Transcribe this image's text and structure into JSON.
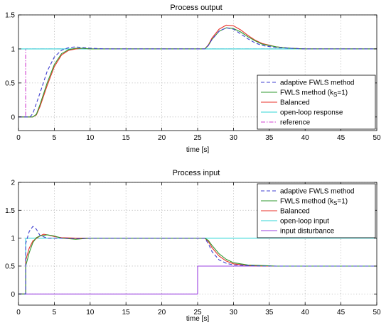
{
  "chart_data": [
    {
      "type": "line",
      "title": "Process output",
      "xlabel": "time [s]",
      "ylabel": "",
      "xlim": [
        0,
        50
      ],
      "ylim": [
        -0.2,
        1.5
      ],
      "xticks": [
        0,
        5,
        10,
        15,
        20,
        25,
        30,
        35,
        40,
        45,
        50
      ],
      "yticks": [
        0,
        0.5,
        1,
        1.5
      ],
      "grid": true,
      "legend_position": "bottom-right",
      "series": [
        {
          "name": "adaptive FWLS method",
          "color": "#3f3fd0",
          "style": "dashed",
          "x": [
            0,
            1,
            1.6,
            2,
            3,
            4,
            5,
            6,
            7,
            8,
            9,
            10,
            12,
            15,
            20,
            26,
            26.5,
            27,
            28,
            29,
            30,
            31,
            32,
            33,
            34,
            36,
            38,
            40,
            45,
            50
          ],
          "y": [
            0,
            0,
            0,
            0.05,
            0.35,
            0.67,
            0.88,
            0.98,
            1.02,
            1.03,
            1.02,
            1.01,
            1.0,
            1.0,
            1.0,
            1.0,
            1.05,
            1.14,
            1.26,
            1.31,
            1.29,
            1.22,
            1.15,
            1.09,
            1.05,
            1.02,
            1.01,
            1.0,
            1.0,
            1.0
          ]
        },
        {
          "name": "FWLS method (k",
          "name_sub": "S",
          "name_end": "=1)",
          "color": "#2f9a2f",
          "style": "solid",
          "x": [
            0,
            1,
            2,
            2.5,
            3,
            4,
            5,
            6,
            7,
            8,
            9,
            10,
            12,
            15,
            20,
            26,
            26.5,
            27,
            28,
            29,
            30,
            31,
            32,
            33,
            34,
            36,
            38,
            40,
            45,
            50
          ],
          "y": [
            0,
            0,
            0,
            0.04,
            0.18,
            0.5,
            0.77,
            0.93,
            0.99,
            1.01,
            1.01,
            1.0,
            1.0,
            1.0,
            1.0,
            1.0,
            1.05,
            1.14,
            1.26,
            1.31,
            1.3,
            1.25,
            1.18,
            1.12,
            1.07,
            1.03,
            1.01,
            1.0,
            1.0,
            1.0
          ]
        },
        {
          "name": "Balanced",
          "color": "#e8322a",
          "style": "solid",
          "x": [
            0,
            1,
            2,
            2.5,
            3,
            4,
            5,
            6,
            7,
            8,
            9,
            10,
            12,
            15,
            20,
            26,
            26.5,
            27,
            28,
            29,
            30,
            31,
            32,
            33,
            34,
            36,
            38,
            40,
            45,
            50
          ],
          "y": [
            0,
            0,
            0,
            0.03,
            0.15,
            0.46,
            0.74,
            0.91,
            0.98,
            1.0,
            1.01,
            1.0,
            1.0,
            1.0,
            1.0,
            1.0,
            1.06,
            1.16,
            1.29,
            1.35,
            1.34,
            1.28,
            1.2,
            1.13,
            1.08,
            1.03,
            1.01,
            1.0,
            1.0,
            1.0
          ]
        },
        {
          "name": "open-loop response",
          "color": "#30d6d6",
          "style": "solid",
          "x": [
            0,
            50
          ],
          "y": [
            1,
            1
          ]
        },
        {
          "name": "reference",
          "color": "#d040d0",
          "style": "dashdot",
          "x": [
            0,
            1,
            1,
            50
          ],
          "y": [
            0,
            0,
            1,
            1
          ]
        }
      ]
    },
    {
      "type": "line",
      "title": "Process input",
      "xlabel": "time [s]",
      "ylabel": "",
      "xlim": [
        0,
        50
      ],
      "ylim": [
        -0.2,
        2
      ],
      "xticks": [
        0,
        5,
        10,
        15,
        20,
        25,
        30,
        35,
        40,
        45,
        50
      ],
      "yticks": [
        0,
        0.5,
        1,
        1.5,
        2
      ],
      "grid": true,
      "legend_position": "top-right",
      "series": [
        {
          "name": "adaptive FWLS method",
          "color": "#3f3fd0",
          "style": "dashed",
          "x": [
            0,
            1,
            1,
            1.5,
            2,
            2.5,
            3,
            4,
            5,
            6,
            8,
            10,
            15,
            25,
            26,
            26.5,
            27,
            28,
            29,
            30,
            32,
            34,
            36,
            40,
            50
          ],
          "y": [
            0,
            0,
            0.9,
            1.12,
            1.21,
            1.16,
            1.05,
            1.0,
            1.0,
            1.0,
            0.99,
            1.0,
            1.0,
            1.0,
            1.0,
            0.9,
            0.76,
            0.61,
            0.55,
            0.52,
            0.51,
            0.5,
            0.5,
            0.5,
            0.5
          ]
        },
        {
          "name": "FWLS method (k",
          "name_sub": "S",
          "name_end": "=1)",
          "color": "#2f9a2f",
          "style": "solid",
          "x": [
            0,
            1,
            1,
            1.5,
            2,
            2.5,
            3,
            4,
            5,
            6,
            8,
            10,
            15,
            25,
            26,
            26.5,
            27,
            28,
            29,
            30,
            32,
            34,
            36,
            40,
            50
          ],
          "y": [
            0,
            0,
            0.5,
            0.74,
            0.92,
            1.01,
            1.04,
            1.06,
            1.04,
            1.0,
            0.98,
            1.0,
            1.0,
            1.0,
            1.0,
            0.96,
            0.87,
            0.72,
            0.62,
            0.56,
            0.52,
            0.51,
            0.5,
            0.5,
            0.5
          ]
        },
        {
          "name": "Balanced",
          "color": "#e8322a",
          "style": "solid",
          "x": [
            0,
            1,
            1,
            1.5,
            2,
            3,
            3.5,
            4,
            5,
            6,
            8,
            10,
            15,
            25,
            26,
            26.5,
            27,
            28,
            29,
            30,
            32,
            34,
            36,
            40,
            50
          ],
          "y": [
            0,
            0,
            0.6,
            0.82,
            0.95,
            1.04,
            1.07,
            1.06,
            1.03,
            1.01,
            1.0,
            1.0,
            1.0,
            1.0,
            1.0,
            0.94,
            0.83,
            0.68,
            0.59,
            0.54,
            0.51,
            0.5,
            0.5,
            0.5,
            0.5
          ]
        },
        {
          "name": "open-loop input",
          "color": "#30d6d6",
          "style": "solid",
          "x": [
            0,
            1,
            1,
            50
          ],
          "y": [
            0,
            0,
            1,
            1
          ]
        },
        {
          "name": "input disturbance",
          "color": "#9a40e0",
          "style": "solid",
          "x": [
            0,
            25,
            25,
            50
          ],
          "y": [
            0,
            0,
            0.5,
            0.5
          ]
        }
      ]
    }
  ]
}
